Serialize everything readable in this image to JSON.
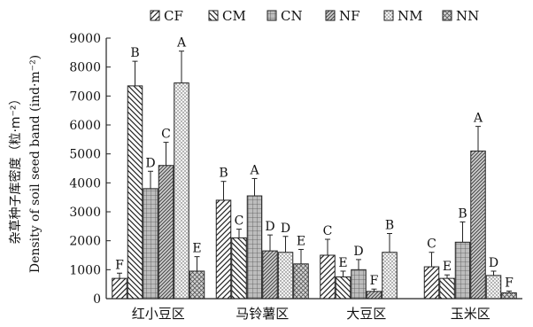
{
  "chart_data": {
    "type": "bar",
    "ylabel_cn": "杂草种子库密度（粒·m⁻²）",
    "ylabel_en": "Density of soil seed band (ind·m⁻²)",
    "categories": [
      "红小豆区",
      "马铃薯区",
      "大豆区",
      "玉米区"
    ],
    "ylim": [
      0,
      9000
    ],
    "yticks": [
      0,
      1000,
      2000,
      3000,
      4000,
      5000,
      6000,
      7000,
      8000,
      9000
    ],
    "legend_position": "top",
    "series": [
      {
        "name": "CF",
        "values": [
          700,
          3400,
          1500,
          1100
        ],
        "errors": [
          180,
          650,
          550,
          500
        ],
        "letters": [
          "F",
          "B",
          "C",
          "C"
        ],
        "pattern": "diag-right",
        "color": "#333333"
      },
      {
        "name": "CM",
        "values": [
          7350,
          2100,
          750,
          700
        ],
        "errors": [
          850,
          300,
          200,
          120
        ],
        "letters": [
          "B",
          "C",
          "E",
          "E"
        ],
        "pattern": "diag-left",
        "color": "#333333"
      },
      {
        "name": "CN",
        "values": [
          3800,
          3550,
          1000,
          1950
        ],
        "errors": [
          600,
          600,
          350,
          700
        ],
        "letters": [
          "D",
          "A",
          "D",
          "B"
        ],
        "pattern": "grid",
        "color": "#333333"
      },
      {
        "name": "NF",
        "values": [
          4600,
          1650,
          250,
          5100
        ],
        "errors": [
          800,
          550,
          80,
          850
        ],
        "letters": [
          "C",
          "D",
          "F",
          "A"
        ],
        "pattern": "dense-diag",
        "color": "#555555"
      },
      {
        "name": "NM",
        "values": [
          7450,
          1600,
          1600,
          800
        ],
        "errors": [
          1100,
          550,
          650,
          150
        ],
        "letters": [
          "A",
          "D",
          "B",
          "D"
        ],
        "pattern": "dots",
        "color": "#666666"
      },
      {
        "name": "NN",
        "values": [
          950,
          1200,
          null,
          200
        ],
        "errors": [
          500,
          500,
          null,
          60
        ],
        "letters": [
          "E",
          "E",
          "",
          "F"
        ],
        "pattern": "cross",
        "color": "#444444"
      }
    ]
  }
}
